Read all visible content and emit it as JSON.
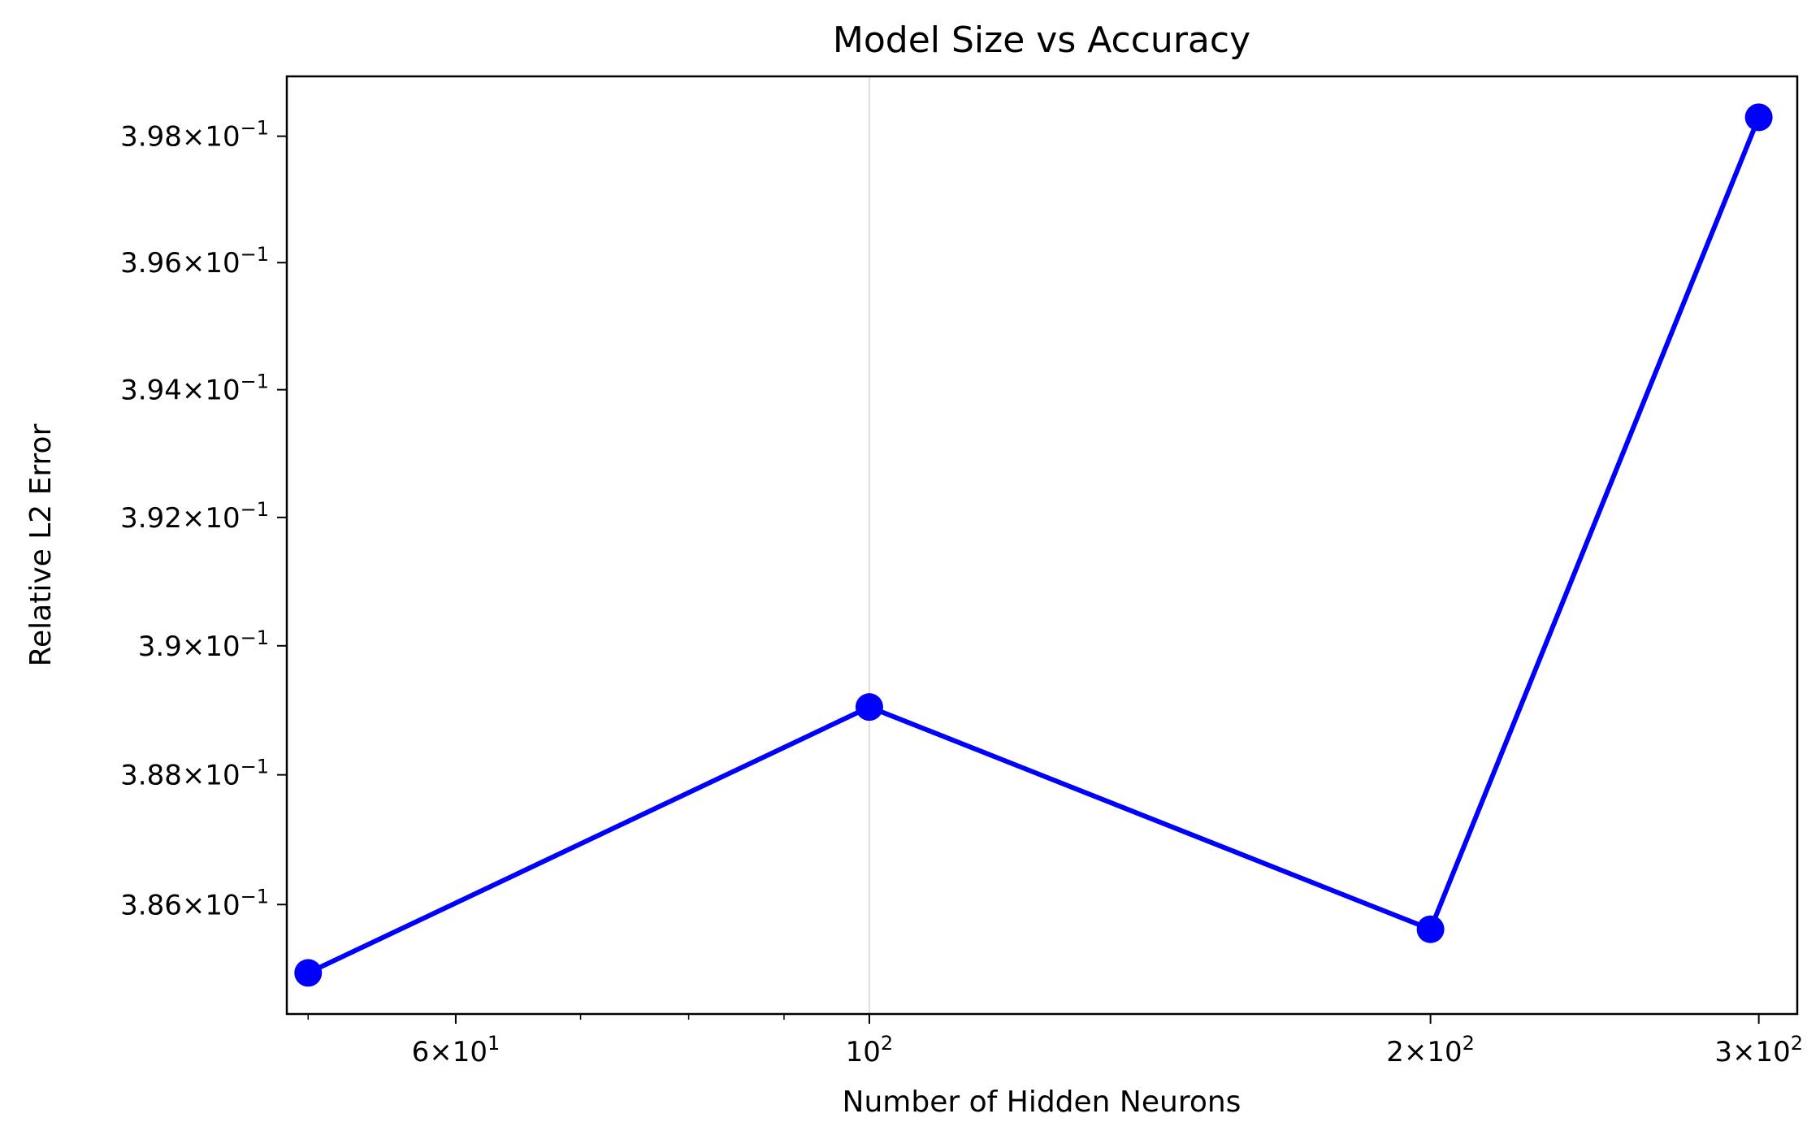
{
  "chart_data": {
    "type": "line",
    "title": "Model Size vs Accuracy",
    "xlabel": "Number of Hidden Neurons",
    "ylabel": "Relative L2 Error",
    "xscale": "log",
    "yscale": "log",
    "grid": "vertical gridline at 10^2 only",
    "legend": "none",
    "xlim": [
      48.7,
      314.6
    ],
    "ylim": [
      0.38432,
      0.39895
    ],
    "x_ticks": [
      {
        "value": 60,
        "mant": "6",
        "exp": "1"
      },
      {
        "value": 100,
        "mant": "",
        "exp": "2"
      },
      {
        "value": 200,
        "mant": "2",
        "exp": "2"
      },
      {
        "value": 300,
        "mant": "3",
        "exp": "2"
      }
    ],
    "y_ticks": [
      {
        "value": 0.386,
        "mant": "3.86",
        "exp": "−1"
      },
      {
        "value": 0.388,
        "mant": "3.88",
        "exp": "−1"
      },
      {
        "value": 0.39,
        "mant": "3.9",
        "exp": "−1"
      },
      {
        "value": 0.392,
        "mant": "3.92",
        "exp": "−1"
      },
      {
        "value": 0.394,
        "mant": "3.94",
        "exp": "−1"
      },
      {
        "value": 0.396,
        "mant": "3.96",
        "exp": "−1"
      },
      {
        "value": 0.398,
        "mant": "3.98",
        "exp": "−1"
      }
    ],
    "series": [
      {
        "color": "#0000ff",
        "x": [
          50,
          100,
          200,
          300
        ],
        "y": [
          0.38495,
          0.38905,
          0.38562,
          0.3983
        ]
      }
    ]
  }
}
